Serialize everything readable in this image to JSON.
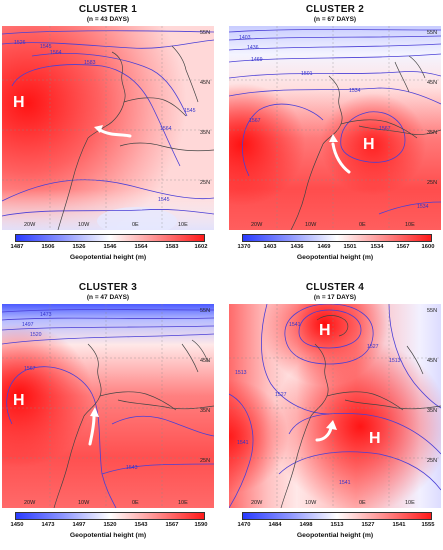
{
  "panels": [
    {
      "title": "CLUSTER  1",
      "subtitle": "(n = 43 DAYS)",
      "lat_labels": [
        "55N",
        "45N",
        "35N",
        "25N"
      ],
      "lon_labels": [
        "20W",
        "10W",
        "0E",
        "10E"
      ],
      "colorbar_ticks": [
        "1487",
        "1506",
        "1526",
        "1546",
        "1564",
        "1583",
        "1602"
      ],
      "colorbar_label": "Geopotential height (m)",
      "contour_labels": [
        "1526",
        "1545",
        "1564",
        "1583",
        "1564",
        "1545",
        "1545"
      ],
      "high_markers": [
        "H"
      ]
    },
    {
      "title": "CLUSTER 2",
      "subtitle": "(n = 67 DAYS)",
      "lat_labels": [
        "55N",
        "45N",
        "35N",
        "25N"
      ],
      "lon_labels": [
        "20W",
        "10W",
        "0E",
        "10E"
      ],
      "colorbar_ticks": [
        "1370",
        "1403",
        "1436",
        "1469",
        "1501",
        "1534",
        "1567",
        "1600"
      ],
      "colorbar_label": "Geopotential height (m)",
      "contour_labels": [
        "1403",
        "1436",
        "1469",
        "1501",
        "1534",
        "1567",
        "1567",
        "1534"
      ],
      "high_markers": [
        "H"
      ]
    },
    {
      "title": "CLUSTER 3",
      "subtitle": "(n = 47 DAYS)",
      "lat_labels": [
        "55N",
        "45N",
        "35N",
        "25N"
      ],
      "lon_labels": [
        "20W",
        "10W",
        "0E",
        "10E"
      ],
      "colorbar_ticks": [
        "1450",
        "1473",
        "1497",
        "1520",
        "1543",
        "1567",
        "1590"
      ],
      "colorbar_label": "Geopotential height (m)",
      "contour_labels": [
        "1473",
        "1497",
        "1520",
        "1567",
        "1543"
      ],
      "high_markers": [
        "H"
      ]
    },
    {
      "title": "CLUSTER 4",
      "subtitle": "(n = 17 DAYS)",
      "lat_labels": [
        "55N",
        "45N",
        "35N",
        "25N"
      ],
      "lon_labels": [
        "20W",
        "10W",
        "0E",
        "10E"
      ],
      "colorbar_ticks": [
        "1470",
        "1484",
        "1498",
        "1513",
        "1527",
        "1541",
        "1555"
      ],
      "colorbar_label": "Geopotential height (m)",
      "contour_labels": [
        "1541",
        "1513",
        "1527",
        "1541",
        "1527",
        "1513",
        "1541"
      ],
      "high_markers": [
        "H",
        "H"
      ]
    }
  ],
  "colors": {
    "low": "#2a3bff",
    "mid": "#ffffff",
    "high": "#ff1a1a",
    "contour": "#4a3fd6",
    "coast": "#444444",
    "arrow": "#ffffff"
  }
}
